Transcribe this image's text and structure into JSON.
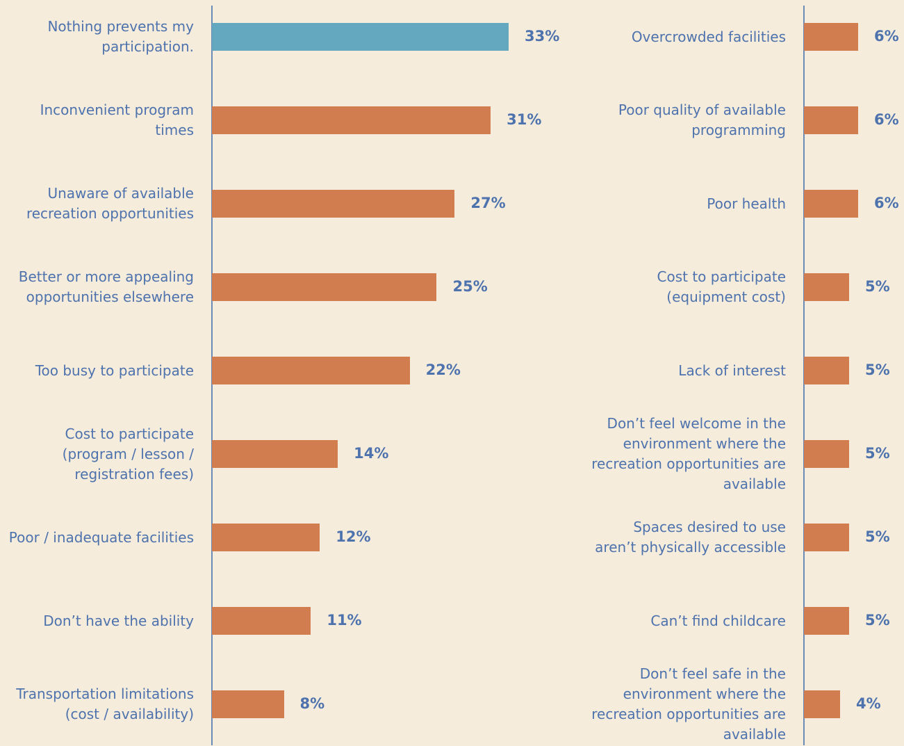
{
  "chart_data": [
    {
      "type": "bar",
      "orientation": "horizontal",
      "categories": [
        "Nothing prevents my participation.",
        "Inconvenient program times",
        "Unaware of available recreation opportunities",
        "Better or more appealing opportunities elsewhere",
        "Too busy to participate",
        "Cost to participate (program / lesson / registration fees)",
        "Poor / inadequate facilities",
        "Don’t have the ability",
        "Transportation limitations (cost / availability)"
      ],
      "values": [
        33,
        31,
        27,
        25,
        22,
        14,
        12,
        11,
        8
      ],
      "value_labels": [
        "33%",
        "31%",
        "27%",
        "25%",
        "22%",
        "14%",
        "12%",
        "11%",
        "8%"
      ],
      "colors": [
        "#63a8bf",
        "#d17d4f",
        "#d17d4f",
        "#d17d4f",
        "#d17d4f",
        "#d17d4f",
        "#d17d4f",
        "#d17d4f",
        "#d17d4f"
      ],
      "xlim": [
        0,
        33
      ]
    },
    {
      "type": "bar",
      "orientation": "horizontal",
      "categories": [
        "Overcrowded facilities",
        "Poor quality of available programming",
        "Poor health",
        "Cost to participate (equipment cost)",
        "Lack of interest",
        "Don’t feel welcome in the environment where the recreation opportunities are available",
        "Spaces desired to use aren’t physically accessible",
        "Can’t find childcare",
        "Don’t feel safe in the environment where the recreation opportunities are available"
      ],
      "values": [
        6,
        6,
        6,
        5,
        5,
        5,
        5,
        5,
        4
      ],
      "value_labels": [
        "6%",
        "6%",
        "6%",
        "5%",
        "5%",
        "5%",
        "5%",
        "5%",
        "4%"
      ],
      "colors": [
        "#d17d4f",
        "#d17d4f",
        "#d17d4f",
        "#d17d4f",
        "#d17d4f",
        "#d17d4f",
        "#d17d4f",
        "#d17d4f",
        "#d17d4f"
      ],
      "xlim": [
        0,
        6
      ]
    }
  ]
}
